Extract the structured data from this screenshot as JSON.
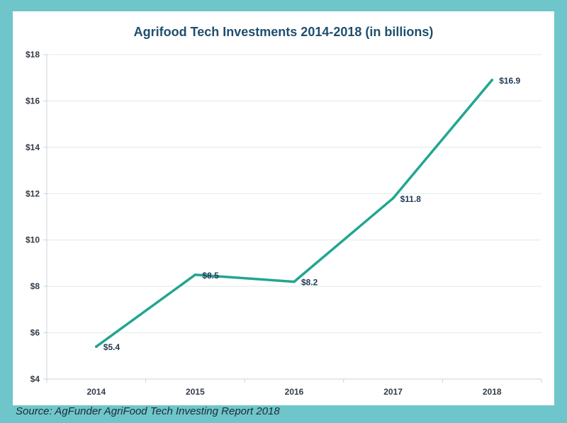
{
  "chart_data": {
    "type": "line",
    "title": "Agrifood Tech Investments 2014-2018 (in billions)",
    "xlabel": "",
    "ylabel": "",
    "categories": [
      "2014",
      "2015",
      "2016",
      "2017",
      "2018"
    ],
    "series": [
      {
        "values": [
          5.4,
          8.5,
          8.2,
          11.8,
          16.9
        ],
        "data_labels": [
          "$5.4",
          "$8.5",
          "$8.2",
          "$11.8",
          "$16.9"
        ],
        "color": "#21a691"
      }
    ],
    "ylim": [
      4,
      18
    ],
    "y_ticks": [
      4,
      6,
      8,
      10,
      12,
      14,
      16,
      18
    ],
    "y_tick_labels": [
      "$4",
      "$6",
      "$8",
      "$10",
      "$12",
      "$14",
      "$16",
      "$18"
    ],
    "grid": true,
    "legend": "none"
  },
  "source": "Source: AgFunder AgriFood Tech Investing Report 2018",
  "colors": {
    "background": "#6ec6cb",
    "panel": "#ffffff",
    "title": "#1f4e6e",
    "line": "#21a691"
  }
}
